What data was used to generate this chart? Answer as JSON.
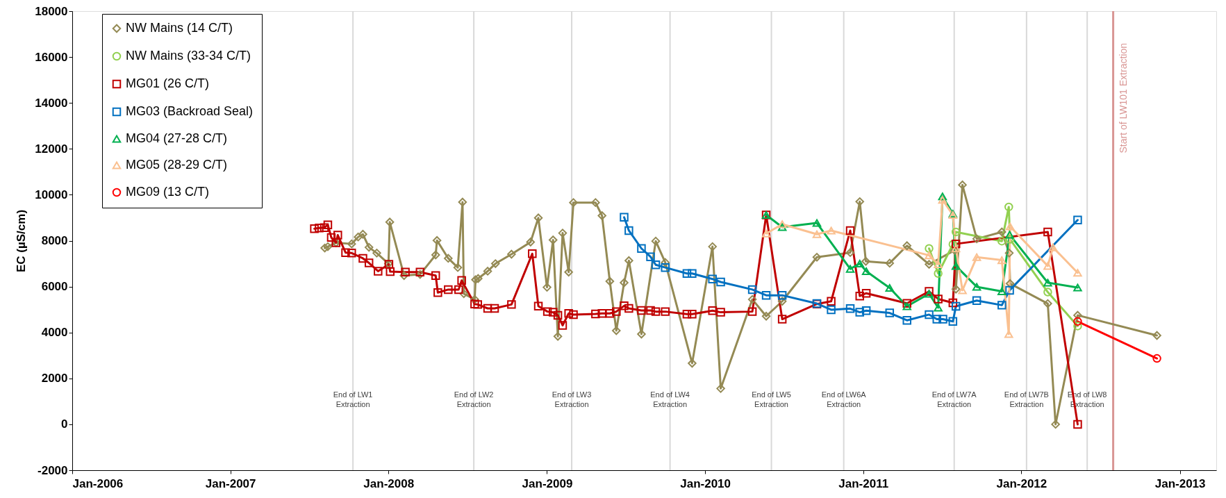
{
  "chart_data": {
    "type": "line",
    "ylabel": "EC (µS/cm)",
    "xlim": [
      "2006-01-01",
      "2013-03-26"
    ],
    "xticks": [
      {
        "value": "2006-01-01",
        "label": "Jan-2006"
      },
      {
        "value": "2007-01-01",
        "label": "Jan-2007"
      },
      {
        "value": "2008-01-01",
        "label": "Jan-2008"
      },
      {
        "value": "2009-01-01",
        "label": "Jan-2009"
      },
      {
        "value": "2010-01-01",
        "label": "Jan-2010"
      },
      {
        "value": "2011-01-01",
        "label": "Jan-2011"
      },
      {
        "value": "2012-01-01",
        "label": "Jan-2012"
      },
      {
        "value": "2013-01-01",
        "label": "Jan-2013"
      }
    ],
    "ylim": [
      -2000,
      18000
    ],
    "yticks": [
      -2000,
      0,
      2000,
      4000,
      6000,
      8000,
      10000,
      12000,
      14000,
      16000,
      18000
    ],
    "grid": false,
    "legend": "top left",
    "line_style": "solid",
    "series": [
      {
        "name": "NW Mains (14 C/T)",
        "color": "#948a54",
        "marker": "diamond",
        "x": [
          "2007-08-07",
          "2007-08-14",
          "2007-09-02",
          "2007-10-08",
          "2007-10-23",
          "2007-11-03",
          "2007-11-17",
          "2007-12-05",
          "2008-01-01",
          "2008-01-04",
          "2008-02-06",
          "2008-03-14",
          "2008-04-19",
          "2008-04-22",
          "2008-05-18",
          "2008-06-09",
          "2008-06-20",
          "2008-06-23",
          "2008-07-18",
          "2008-07-20",
          "2008-07-26",
          "2008-08-17",
          "2008-09-04",
          "2008-10-11",
          "2008-11-24",
          "2008-12-12",
          "2009-01-01",
          "2009-01-15",
          "2009-01-26",
          "2009-02-06",
          "2009-02-20",
          "2009-03-03",
          "2009-04-23",
          "2009-05-08",
          "2009-05-26",
          "2009-06-10",
          "2009-06-28",
          "2009-07-09",
          "2009-08-07",
          "2009-09-09",
          "2009-10-01",
          "2009-12-02",
          "2010-01-18",
          "2010-02-06",
          "2010-04-20",
          "2010-05-22",
          "2010-06-28",
          "2010-09-16",
          "2010-12-02",
          "2010-12-24",
          "2011-01-07",
          "2011-03-03",
          "2011-04-12",
          "2011-06-02",
          "2011-07-31",
          "2011-08-03",
          "2011-08-18",
          "2011-09-20",
          "2011-11-17",
          "2011-12-04",
          "2011-12-06",
          "2012-03-02",
          "2012-03-20",
          "2012-05-10",
          "2012-11-09"
        ],
        "values": [
          7680,
          7740,
          7910,
          7860,
          8160,
          8280,
          7710,
          7460,
          7000,
          8810,
          6480,
          6530,
          7380,
          8010,
          7230,
          6830,
          9680,
          5690,
          5440,
          6300,
          6350,
          6670,
          7000,
          7410,
          7940,
          8990,
          5970,
          8030,
          3830,
          8330,
          6630,
          9660,
          9660,
          9090,
          6230,
          4080,
          6170,
          7130,
          3930,
          7980,
          7050,
          2660,
          7740,
          1560,
          5440,
          4710,
          5360,
          7280,
          7480,
          9700,
          7100,
          7020,
          7780,
          6970,
          7580,
          5890,
          10430,
          8080,
          8380,
          7460,
          6130,
          5260,
          0,
          4750,
          3870
        ]
      },
      {
        "name": "NW Mains (33-34 C/T)",
        "color": "#92d050",
        "marker": "circle",
        "x": [
          "2011-06-02",
          "2011-06-23",
          "2011-07-27",
          "2011-08-03",
          "2011-11-17",
          "2011-12-03",
          "2011-12-06",
          "2012-03-02",
          "2012-05-10"
        ],
        "values": [
          7660,
          6570,
          7840,
          8380,
          7980,
          9470,
          8060,
          5760,
          4280
        ]
      },
      {
        "name": "MG01 (26 C/T)",
        "color": "#c00000",
        "marker": "square",
        "x": [
          "2007-07-14",
          "2007-07-25",
          "2007-08-06",
          "2007-08-14",
          "2007-08-22",
          "2007-09-02",
          "2007-09-06",
          "2007-09-24",
          "2007-10-08",
          "2007-11-03",
          "2007-11-17",
          "2007-12-08",
          "2008-01-02",
          "2008-01-05",
          "2008-02-09",
          "2008-03-14",
          "2008-04-19",
          "2008-04-24",
          "2008-05-18",
          "2008-06-11",
          "2008-06-18",
          "2008-07-18",
          "2008-07-25",
          "2008-08-17",
          "2008-09-02",
          "2008-10-11",
          "2008-11-28",
          "2008-12-12",
          "2009-01-02",
          "2009-01-15",
          "2009-01-26",
          "2009-02-06",
          "2009-02-20",
          "2009-03-03",
          "2009-04-23",
          "2009-05-08",
          "2009-05-26",
          "2009-06-10",
          "2009-06-28",
          "2009-07-09",
          "2009-08-07",
          "2009-08-28",
          "2009-09-09",
          "2009-10-01",
          "2009-11-20",
          "2009-12-02",
          "2010-01-18",
          "2010-02-06",
          "2010-04-20",
          "2010-05-22",
          "2010-06-28",
          "2010-09-16",
          "2010-10-19",
          "2010-12-02",
          "2010-12-24",
          "2011-01-08",
          "2011-04-12",
          "2011-06-02",
          "2011-06-23",
          "2011-07-27",
          "2011-08-03",
          "2012-03-02",
          "2012-05-10"
        ],
        "values": [
          8520,
          8550,
          8570,
          8690,
          8140,
          7910,
          8240,
          7480,
          7460,
          7230,
          7030,
          6670,
          6970,
          6650,
          6630,
          6630,
          6480,
          5740,
          5870,
          5870,
          6270,
          5240,
          5220,
          5050,
          5050,
          5220,
          7430,
          5150,
          4910,
          4880,
          4750,
          4310,
          4830,
          4780,
          4810,
          4830,
          4830,
          4910,
          5160,
          5050,
          4960,
          4960,
          4910,
          4910,
          4800,
          4800,
          4950,
          4880,
          4910,
          9120,
          4580,
          5240,
          5360,
          8440,
          5590,
          5710,
          5270,
          5790,
          5460,
          5290,
          7860,
          8380,
          0
        ]
      },
      {
        "name": "MG03 (Backroad Seal)",
        "color": "#0070c0",
        "marker": "square",
        "x": [
          "2009-06-28",
          "2009-07-09",
          "2009-08-07",
          "2009-08-28",
          "2009-09-09",
          "2009-10-01",
          "2009-11-20",
          "2009-12-02",
          "2010-01-18",
          "2010-02-06",
          "2010-04-20",
          "2010-05-22",
          "2010-06-28",
          "2010-09-16",
          "2010-10-19",
          "2010-12-02",
          "2010-12-24",
          "2011-01-08",
          "2011-03-03",
          "2011-04-12",
          "2011-06-02",
          "2011-06-20",
          "2011-07-04",
          "2011-07-27",
          "2011-08-03",
          "2011-09-20",
          "2011-11-17",
          "2011-12-05",
          "2012-05-10"
        ],
        "values": [
          9020,
          8440,
          7660,
          7300,
          6950,
          6830,
          6570,
          6570,
          6330,
          6200,
          5870,
          5620,
          5620,
          5260,
          4990,
          5040,
          4880,
          4950,
          4850,
          4530,
          4780,
          4580,
          4580,
          4480,
          5140,
          5390,
          5190,
          5840,
          8900
        ]
      },
      {
        "name": "MG04 (27-28 C/T)",
        "color": "#00b050",
        "marker": "triangle",
        "x": [
          "2010-05-22",
          "2010-06-28",
          "2010-09-16",
          "2010-12-02",
          "2010-12-24",
          "2011-01-08",
          "2011-03-03",
          "2011-04-12",
          "2011-06-02",
          "2011-06-23",
          "2011-07-03",
          "2011-07-27",
          "2011-08-03",
          "2011-09-20",
          "2011-11-17",
          "2011-12-05",
          "2012-03-02",
          "2012-05-10"
        ],
        "values": [
          9120,
          8590,
          8770,
          6770,
          7000,
          6670,
          5940,
          5140,
          5690,
          5080,
          9930,
          9170,
          6900,
          5990,
          5790,
          8260,
          6170,
          5960
        ]
      },
      {
        "name": "MG05 (28-29 C/T)",
        "color": "#fac090",
        "marker": "triangle",
        "x": [
          "2010-05-22",
          "2010-06-28",
          "2010-09-16",
          "2010-10-19",
          "2011-06-02",
          "2011-06-23",
          "2011-07-03",
          "2011-07-27",
          "2011-08-03",
          "2011-08-18",
          "2011-09-20",
          "2011-11-17",
          "2011-12-03",
          "2011-12-06",
          "2012-03-02",
          "2012-03-14",
          "2012-05-10"
        ],
        "values": [
          8310,
          8720,
          8280,
          8440,
          7360,
          6970,
          9780,
          9120,
          7660,
          5840,
          7280,
          7150,
          3930,
          8620,
          6900,
          7710,
          6600
        ]
      },
      {
        "name": "MG09 (13 C/T)",
        "color": "#ff0000",
        "marker": "circle",
        "x": [
          "2012-05-10",
          "2012-11-09"
        ],
        "values": [
          4480,
          2870
        ]
      }
    ],
    "ref_lines": [
      {
        "axis": "x",
        "value": "2007-10-11",
        "label": "End of LW1\nExtraction"
      },
      {
        "axis": "x",
        "value": "2008-07-16",
        "label": "End of LW2\nExtraction"
      },
      {
        "axis": "x",
        "value": "2009-02-27",
        "label": "End of LW3\nExtraction"
      },
      {
        "axis": "x",
        "value": "2009-10-12",
        "label": "End of LW4\nExtraction"
      },
      {
        "axis": "x",
        "value": "2010-06-03",
        "label": "End of LW5\nExtraction"
      },
      {
        "axis": "x",
        "value": "2010-11-17",
        "label": "End of LW6A\nExtraction"
      },
      {
        "axis": "x",
        "value": "2011-07-30",
        "label": "End of LW7A\nExtraction"
      },
      {
        "axis": "x",
        "value": "2012-01-13",
        "label": "End of LW7B\nExtraction"
      },
      {
        "axis": "x",
        "value": "2012-06-01",
        "label": "End of LW8\nExtraction"
      },
      {
        "axis": "x",
        "value": "2012-07-31",
        "label": "Start of LW101 Extraction",
        "color": "#d99694"
      }
    ]
  }
}
